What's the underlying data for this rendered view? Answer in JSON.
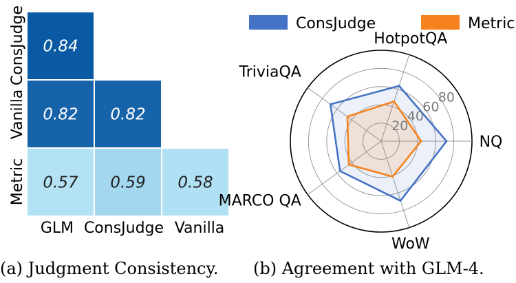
{
  "chart_data": [
    {
      "type": "heatmap",
      "title": "",
      "row_labels": [
        "ConsJudge",
        "Vanilla",
        "Metric"
      ],
      "col_labels": [
        "GLM",
        "ConsJudge",
        "Vanilla"
      ],
      "cells": [
        {
          "row": 0,
          "col": 0,
          "value": 0.84,
          "label": "0.84",
          "color": "#0a5aa3"
        },
        {
          "row": 1,
          "col": 0,
          "value": 0.82,
          "label": "0.82",
          "color": "#1763aa"
        },
        {
          "row": 1,
          "col": 1,
          "value": 0.82,
          "label": "0.82",
          "color": "#1763aa"
        },
        {
          "row": 2,
          "col": 0,
          "value": 0.57,
          "label": "0.57",
          "color": "#b3e2f5"
        },
        {
          "row": 2,
          "col": 1,
          "value": 0.59,
          "label": "0.59",
          "color": "#a2d7ef"
        },
        {
          "row": 2,
          "col": 2,
          "value": 0.58,
          "label": "0.58",
          "color": "#b0e0f4"
        }
      ],
      "caption": "(a)  Judgment Consistency."
    },
    {
      "type": "radar",
      "categories": [
        "NQ",
        "HotpotQA",
        "TriviaQA",
        "MARCO QA",
        "WoW"
      ],
      "series": [
        {
          "name": "ConsJudge",
          "color": "#4472c4",
          "values": [
            72,
            64,
            69,
            56,
            69
          ]
        },
        {
          "name": "Metric",
          "color": "#f5821f",
          "values": [
            44,
            46,
            46,
            44,
            41
          ]
        }
      ],
      "radial_ticks": [
        "20",
        "40",
        "60",
        "80"
      ],
      "tick_values": [
        20,
        40,
        60,
        80
      ],
      "rmax": 100,
      "legend_position": "top",
      "caption": "(b)  Agreement with GLM-4."
    }
  ]
}
